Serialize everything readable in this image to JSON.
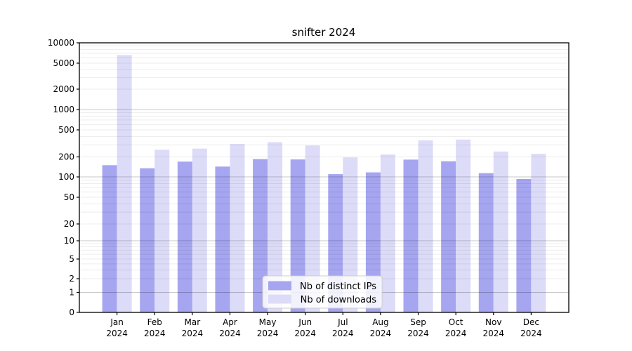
{
  "chart_data": {
    "type": "bar",
    "title": "snifter 2024",
    "xlabel": "",
    "ylabel": "",
    "y_scale": "symlog",
    "ylim": [
      0,
      10000
    ],
    "grid": true,
    "legend_position": "lower center",
    "year": "2024",
    "categories": [
      "Jan",
      "Feb",
      "Mar",
      "Apr",
      "May",
      "Jun",
      "Jul",
      "Aug",
      "Sep",
      "Oct",
      "Nov",
      "Dec"
    ],
    "y_ticks": [
      10000,
      5000,
      2000,
      1000,
      500,
      200,
      100,
      50,
      20,
      10,
      5,
      2,
      1,
      0
    ],
    "series": [
      {
        "name": "Nb of distinct IPs",
        "color": "#a5a5f0",
        "values": [
          150,
          135,
          170,
          143,
          185,
          183,
          110,
          117,
          182,
          172,
          114,
          93
        ]
      },
      {
        "name": "Nb of downloads",
        "color": "#dcdcf8",
        "values": [
          6600,
          255,
          265,
          310,
          330,
          295,
          197,
          217,
          350,
          360,
          240,
          222
        ]
      }
    ]
  }
}
